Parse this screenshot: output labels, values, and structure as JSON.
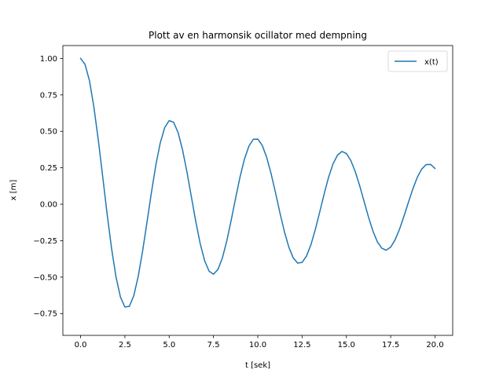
{
  "chart_data": {
    "type": "line",
    "title": "Plott av en harmonsik ocillator med dempning",
    "xlabel": "t [sek]",
    "ylabel": "x [m]",
    "xlim": [
      -1.0,
      21.0
    ],
    "ylim": [
      -0.8996,
      1.0886
    ],
    "xticks": [
      "0.0",
      "2.5",
      "5.0",
      "7.5",
      "10.0",
      "12.5",
      "15.0",
      "17.5",
      "20.0"
    ],
    "yticks": [
      "−0.75",
      "−0.50",
      "−0.25",
      "0.00",
      "0.25",
      "0.50",
      "0.75",
      "1.00"
    ],
    "grid": false,
    "legend_position": "top-right",
    "line_color": "#1f77b4",
    "series": [
      {
        "name": "x(t)",
        "x": [
          0,
          0.25,
          0.5,
          0.75,
          1.0,
          1.25,
          1.5,
          1.75,
          2.0,
          2.25,
          2.5,
          2.75,
          3.0,
          3.25,
          3.5,
          3.75,
          4.0,
          4.25,
          4.5,
          4.75,
          5.0,
          5.25,
          5.5,
          5.75,
          6.0,
          6.25,
          6.5,
          6.75,
          7.0,
          7.25,
          7.5,
          7.75,
          8.0,
          8.25,
          8.5,
          8.75,
          9.0,
          9.25,
          9.5,
          9.75,
          10.0,
          10.25,
          10.5,
          10.75,
          11.0,
          11.25,
          11.5,
          11.75,
          12.0,
          12.25,
          12.5,
          12.75,
          13.0,
          13.25,
          13.5,
          13.75,
          14.0,
          14.25,
          14.5,
          14.75,
          15.0,
          15.25,
          15.5,
          15.75,
          16.0,
          16.25,
          16.5,
          16.75,
          17.0,
          17.25,
          17.5,
          17.75,
          18.0,
          18.25,
          18.5,
          18.75,
          19.0,
          19.25,
          19.5,
          19.75,
          20.0
        ],
        "y": [
          1.0,
          0.96,
          0.848,
          0.667,
          0.44,
          0.187,
          -0.07,
          -0.305,
          -0.5,
          -0.637,
          -0.705,
          -0.701,
          -0.628,
          -0.496,
          -0.321,
          -0.121,
          0.083,
          0.271,
          0.423,
          0.527,
          0.574,
          0.562,
          0.492,
          0.375,
          0.223,
          0.052,
          -0.118,
          -0.27,
          -0.387,
          -0.459,
          -0.48,
          -0.448,
          -0.369,
          -0.252,
          -0.109,
          0.043,
          0.188,
          0.311,
          0.399,
          0.446,
          0.447,
          0.404,
          0.322,
          0.21,
          0.079,
          -0.059,
          -0.187,
          -0.293,
          -0.368,
          -0.404,
          -0.399,
          -0.355,
          -0.277,
          -0.172,
          -0.051,
          0.073,
          0.187,
          0.278,
          0.337,
          0.362,
          0.348,
          0.3,
          0.224,
          0.127,
          0.019,
          -0.089,
          -0.185,
          -0.258,
          -0.302,
          -0.315,
          -0.294,
          -0.244,
          -0.171,
          -0.082,
          0.013,
          0.105,
          0.184,
          0.241,
          0.272,
          0.273,
          0.246
        ]
      }
    ]
  }
}
